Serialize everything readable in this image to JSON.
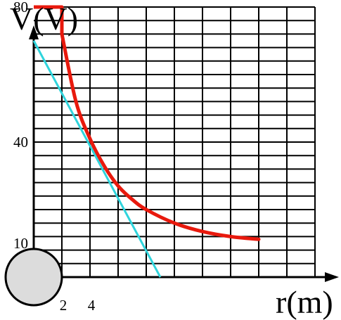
{
  "chart_data": {
    "type": "line",
    "ylabel": "V(V)",
    "xlabel": "r(m)",
    "x_ticks": [
      {
        "value": 2,
        "label": "2"
      },
      {
        "value": 4,
        "label": "4"
      }
    ],
    "y_ticks": [
      {
        "value": 80,
        "label": "80"
      },
      {
        "value": 40,
        "label": "40"
      },
      {
        "value": 10,
        "label": "10"
      }
    ],
    "grid": true,
    "grid_step": {
      "x": 2,
      "y": 4
    },
    "xlim": [
      0,
      20
    ],
    "ylim": [
      0,
      80
    ],
    "sphere": {
      "radius": 2
    },
    "series": [
      {
        "color": "#e8190d",
        "points": [
          [
            0,
            80
          ],
          [
            2,
            80
          ],
          [
            2,
            72
          ],
          [
            3,
            52
          ],
          [
            4,
            41
          ],
          [
            5,
            33
          ],
          [
            6,
            27
          ],
          [
            7,
            23
          ],
          [
            8,
            20
          ],
          [
            10,
            16
          ],
          [
            12,
            13.5
          ],
          [
            14,
            12
          ],
          [
            16,
            11.2
          ]
        ]
      },
      {
        "color": "#2fd4dc",
        "points": [
          [
            0,
            70
          ],
          [
            9,
            0
          ]
        ]
      }
    ]
  },
  "colors": {
    "potential_curve": "#e8190d",
    "tangent_line": "#2fd4dc",
    "sphere_fill": "#dcdcdc",
    "grid": "#000000"
  }
}
